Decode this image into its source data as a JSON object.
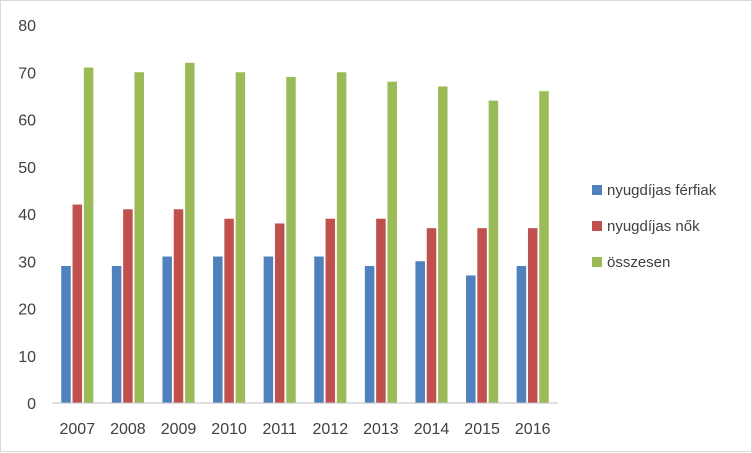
{
  "chart_data": {
    "type": "bar",
    "categories": [
      "2007",
      "2008",
      "2009",
      "2010",
      "2011",
      "2012",
      "2013",
      "2014",
      "2015",
      "2016"
    ],
    "series": [
      {
        "name": "nyugdíjas férfiak",
        "color": "#4f81bd",
        "values": [
          29,
          29,
          31,
          31,
          31,
          31,
          29,
          30,
          27,
          29
        ]
      },
      {
        "name": "nyugdíjas nők",
        "color": "#c0504d",
        "values": [
          42,
          41,
          41,
          39,
          38,
          39,
          39,
          37,
          37,
          37
        ]
      },
      {
        "name": "összesen",
        "color": "#9bbb59",
        "values": [
          71,
          70,
          72,
          70,
          69,
          70,
          68,
          67,
          64,
          66
        ]
      }
    ],
    "ylim": [
      0,
      80
    ],
    "yticks": [
      "0",
      "10",
      "20",
      "30",
      "40",
      "50",
      "60",
      "70",
      "80"
    ],
    "grid": false,
    "legend_position": "right"
  }
}
